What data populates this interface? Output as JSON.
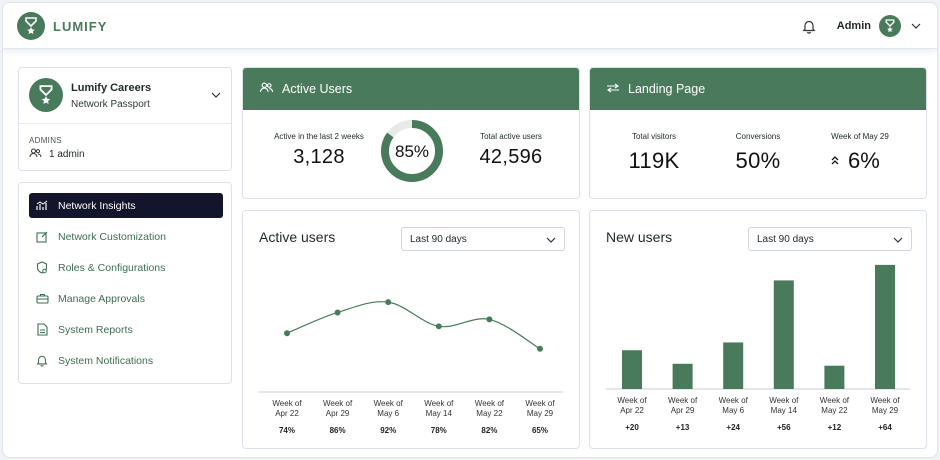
{
  "brand": {
    "name": "LUMIFY"
  },
  "header": {
    "admin_label": "Admin"
  },
  "org": {
    "name": "Lumify Careers",
    "subtitle": "Network Passport",
    "admins_label": "ADMINS",
    "admins_count": "1 admin"
  },
  "nav": {
    "items": [
      {
        "label": "Network Insights",
        "icon": "chart-icon"
      },
      {
        "label": "Network Customization",
        "icon": "edit-icon"
      },
      {
        "label": "Roles & Configurations",
        "icon": "shield-icon"
      },
      {
        "label": "Manage Approvals",
        "icon": "briefcase-icon"
      },
      {
        "label": "System Reports",
        "icon": "document-icon"
      },
      {
        "label": "System Notifications",
        "icon": "bell-icon"
      }
    ]
  },
  "active_users_kpi": {
    "title": "Active Users",
    "recent_label": "Active in the last 2 weeks",
    "recent_value": "3,128",
    "percent_label": "85%",
    "percent": 85,
    "total_label": "Total active users",
    "total_value": "42,596"
  },
  "landing_kpi": {
    "title": "Landing Page",
    "visitors_label": "Total visitors",
    "visitors_value": "119K",
    "conversions_label": "Conversions",
    "conversions_value": "50%",
    "week_label": "Week of May 29",
    "week_value": "6%"
  },
  "colors": {
    "accent": "#4a7a5c",
    "nav_active": "#12152b",
    "donut_track": "#e6ebe8"
  },
  "active_users_chart": {
    "title": "Active users",
    "range_selected": "Last 90 days"
  },
  "new_users_chart": {
    "title": "New users",
    "range_selected": "Last 90 days"
  },
  "chart_data": [
    {
      "type": "line",
      "title": "Active users",
      "categories": [
        [
          "Week of",
          "Apr 22"
        ],
        [
          "Week of",
          "Apr 29"
        ],
        [
          "Week of",
          "May 6"
        ],
        [
          "Week of",
          "May 14"
        ],
        [
          "Week of",
          "May 22"
        ],
        [
          "Week of",
          "May 29"
        ]
      ],
      "value_labels": [
        "74%",
        "86%",
        "92%",
        "78%",
        "82%",
        "65%"
      ],
      "values": [
        74,
        86,
        92,
        78,
        82,
        65
      ],
      "ylim": [
        40,
        110
      ],
      "grid": false
    },
    {
      "type": "bar",
      "title": "New users",
      "categories": [
        [
          "Week of",
          "Apr 22"
        ],
        [
          "Week of",
          "Apr 29"
        ],
        [
          "Week of",
          "May 6"
        ],
        [
          "Week of",
          "May 14"
        ],
        [
          "Week of",
          "May 22"
        ],
        [
          "Week of",
          "May 29"
        ]
      ],
      "value_labels": [
        "+20",
        "+13",
        "+24",
        "+56",
        "+12",
        "+64"
      ],
      "values": [
        20,
        13,
        24,
        56,
        12,
        64
      ],
      "ylim": [
        0,
        66
      ],
      "grid": false
    }
  ]
}
